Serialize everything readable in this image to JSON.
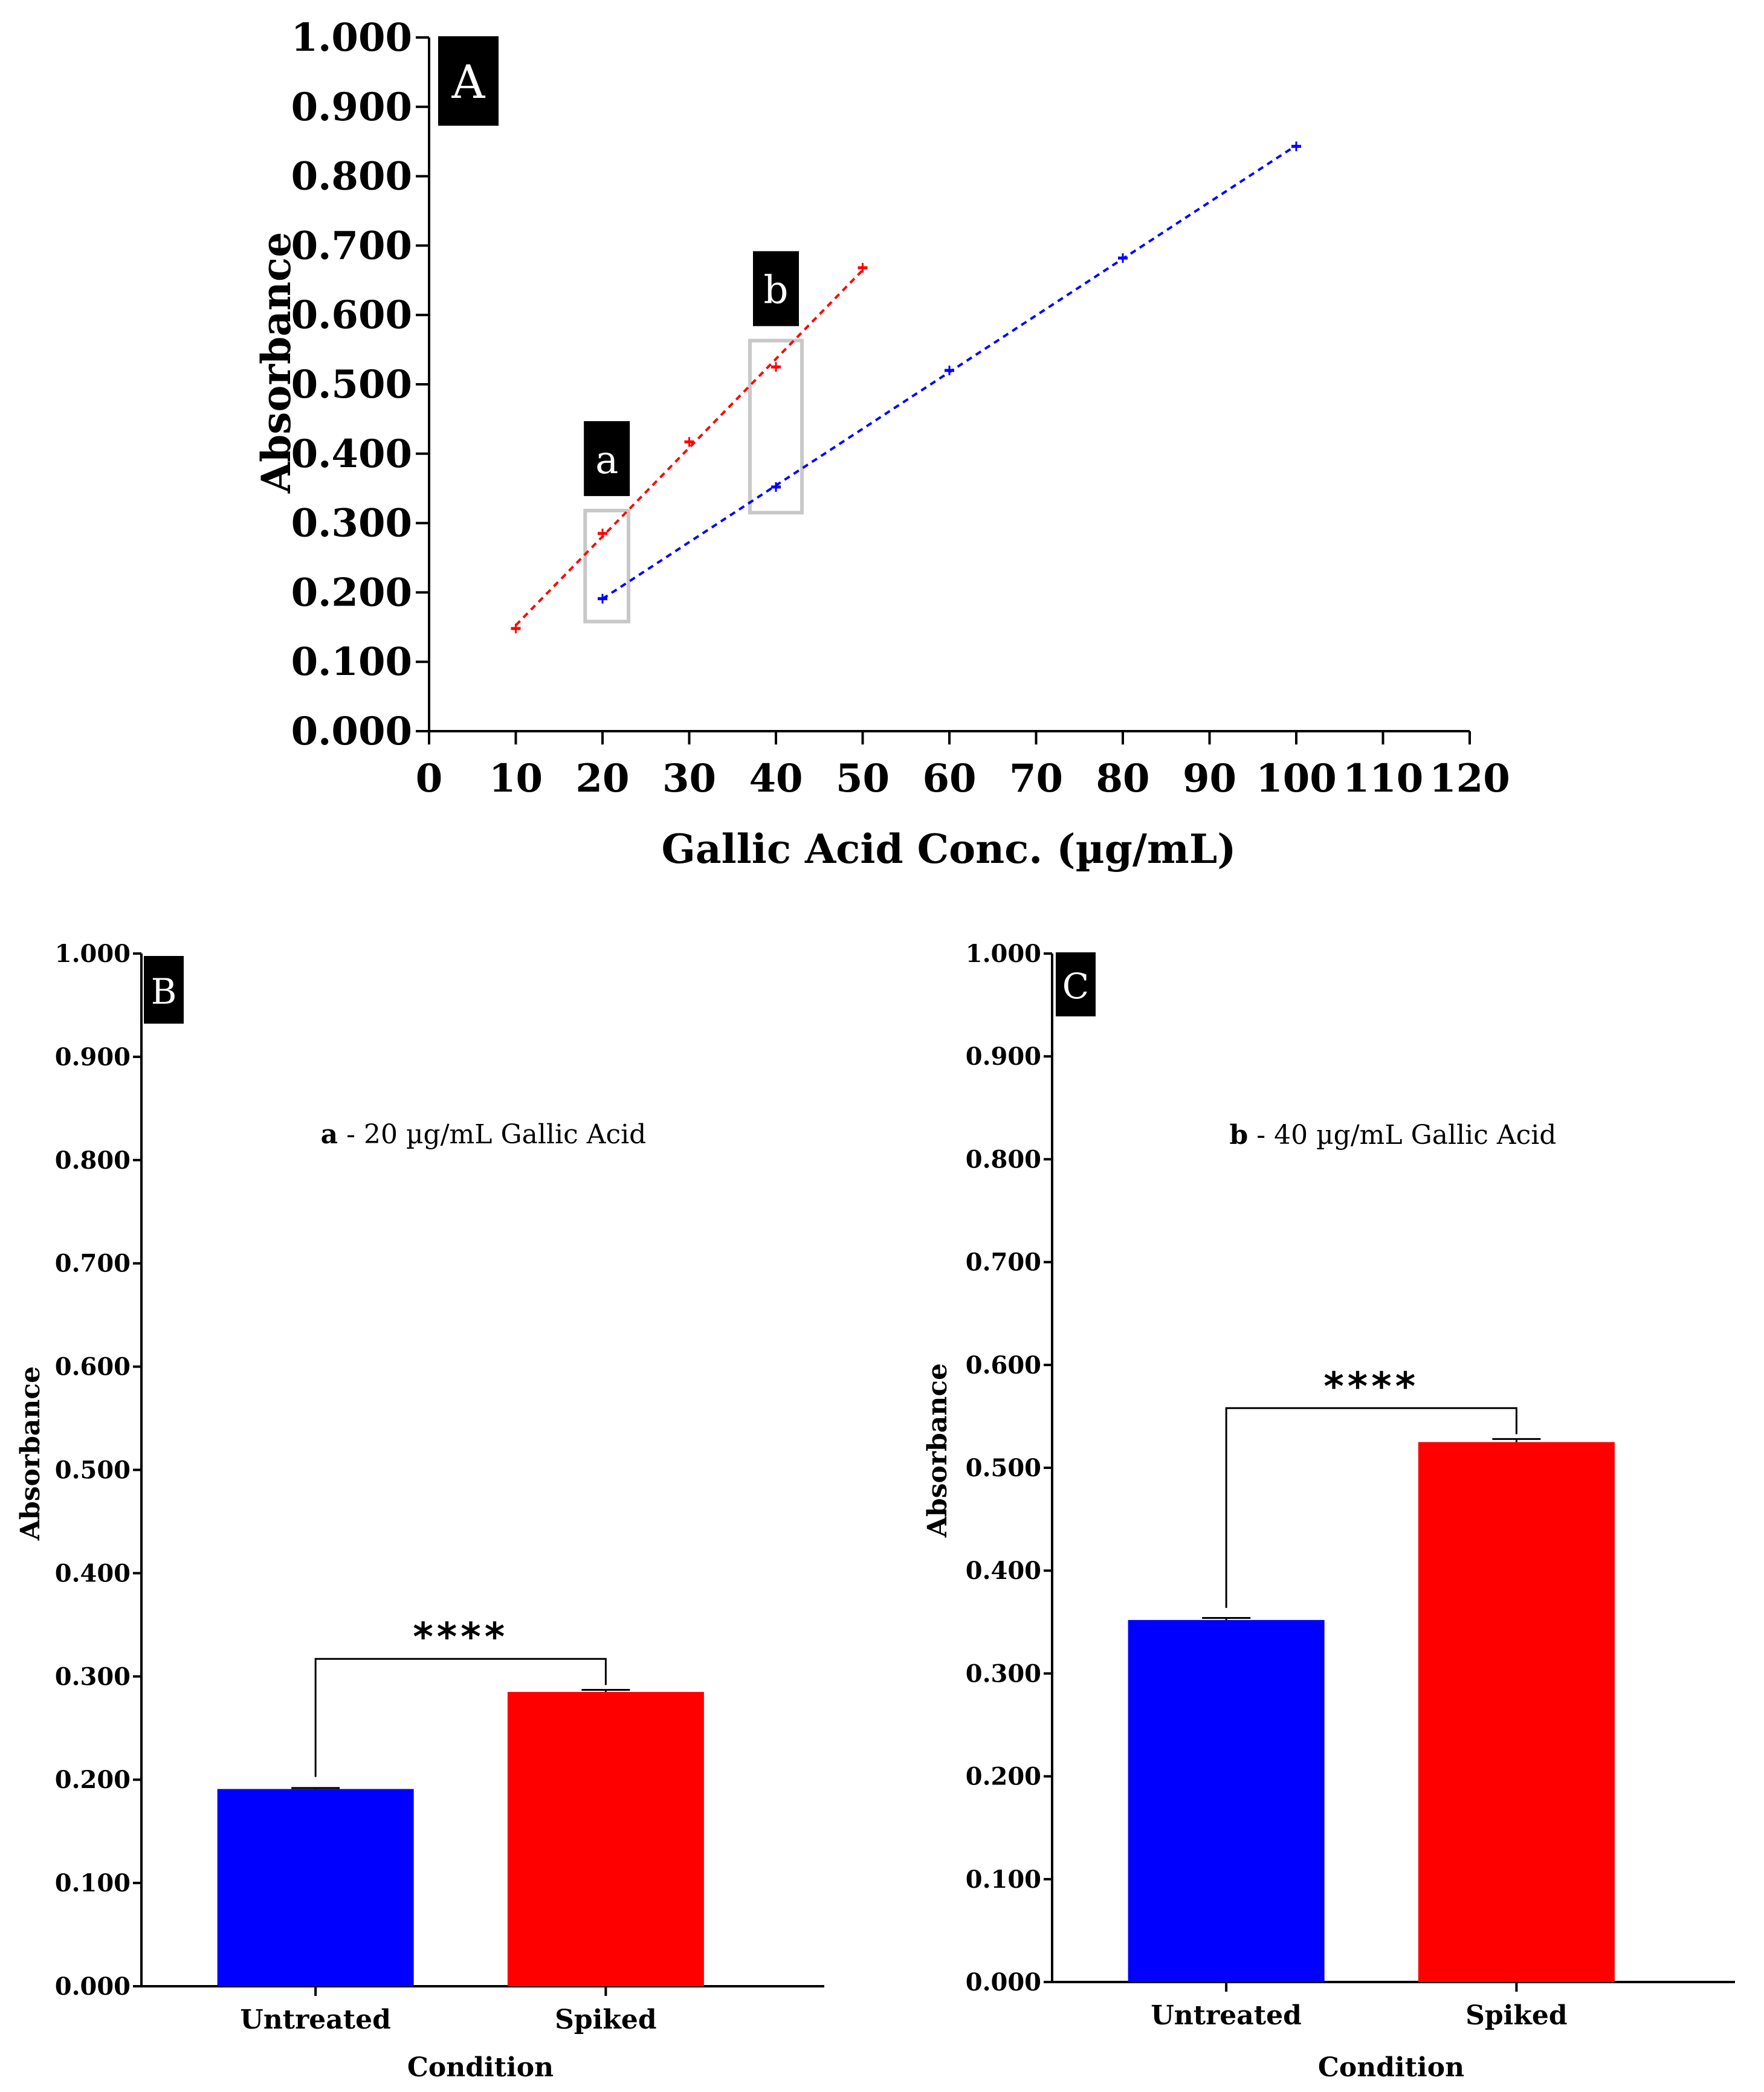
{
  "chart_data": [
    {
      "panel": "A",
      "type": "scatter",
      "xlabel": "Gallic Acid Conc. (µg/mL)",
      "ylabel": "Absorbance",
      "xlim": [
        0,
        120
      ],
      "ylim": [
        0,
        1.0
      ],
      "xticks": [
        "0",
        "10",
        "20",
        "30",
        "40",
        "50",
        "60",
        "70",
        "80",
        "90",
        "100",
        "110",
        "120"
      ],
      "yticks": [
        "0.000",
        "0.100",
        "0.200",
        "0.300",
        "0.400",
        "0.500",
        "0.600",
        "0.700",
        "0.800",
        "0.900",
        "1.000"
      ],
      "series": [
        {
          "name": "Spiked",
          "color": "#ff0000",
          "x": [
            10,
            20,
            30,
            40,
            50
          ],
          "y": [
            0.148,
            0.285,
            0.417,
            0.525,
            0.668
          ]
        },
        {
          "name": "Untreated",
          "color": "#0000ff",
          "x": [
            20,
            40,
            60,
            80,
            100
          ],
          "y": [
            0.191,
            0.352,
            0.52,
            0.682,
            0.843
          ]
        }
      ],
      "highlights": [
        {
          "label": "a",
          "x_range": [
            18,
            23
          ],
          "y_range": [
            0.158,
            0.318
          ]
        },
        {
          "label": "b",
          "x_range": [
            37,
            43
          ],
          "y_range": [
            0.315,
            0.563
          ]
        }
      ]
    },
    {
      "panel": "B",
      "type": "bar",
      "annotation_bold": "a",
      "annotation_text": " - 20 µg/mL Gallic  Acid",
      "xlabel": "Condition",
      "ylabel": "Absorbance",
      "ylim": [
        0,
        1.0
      ],
      "yticks": [
        "0.000",
        "0.100",
        "0.200",
        "0.300",
        "0.400",
        "0.500",
        "0.600",
        "0.700",
        "0.800",
        "0.900",
        "1.000"
      ],
      "categories": [
        "Untreated",
        "Spiked"
      ],
      "values": [
        0.191,
        0.285
      ],
      "errors": [
        0.001,
        0.002
      ],
      "colors": [
        "#0000ff",
        "#ff0000"
      ],
      "significance": "****"
    },
    {
      "panel": "C",
      "type": "bar",
      "annotation_bold": "b",
      "annotation_text": " - 40 µg/mL Gallic  Acid",
      "xlabel": "Condition",
      "ylabel": "Absorbance",
      "ylim": [
        0,
        1.0
      ],
      "yticks": [
        "0.000",
        "0.100",
        "0.200",
        "0.300",
        "0.400",
        "0.500",
        "0.600",
        "0.700",
        "0.800",
        "0.900",
        "1.000"
      ],
      "categories": [
        "Untreated",
        "Spiked"
      ],
      "values": [
        0.352,
        0.525
      ],
      "errors": [
        0.002,
        0.003
      ],
      "colors": [
        "#0000ff",
        "#ff0000"
      ],
      "significance": "****"
    }
  ]
}
